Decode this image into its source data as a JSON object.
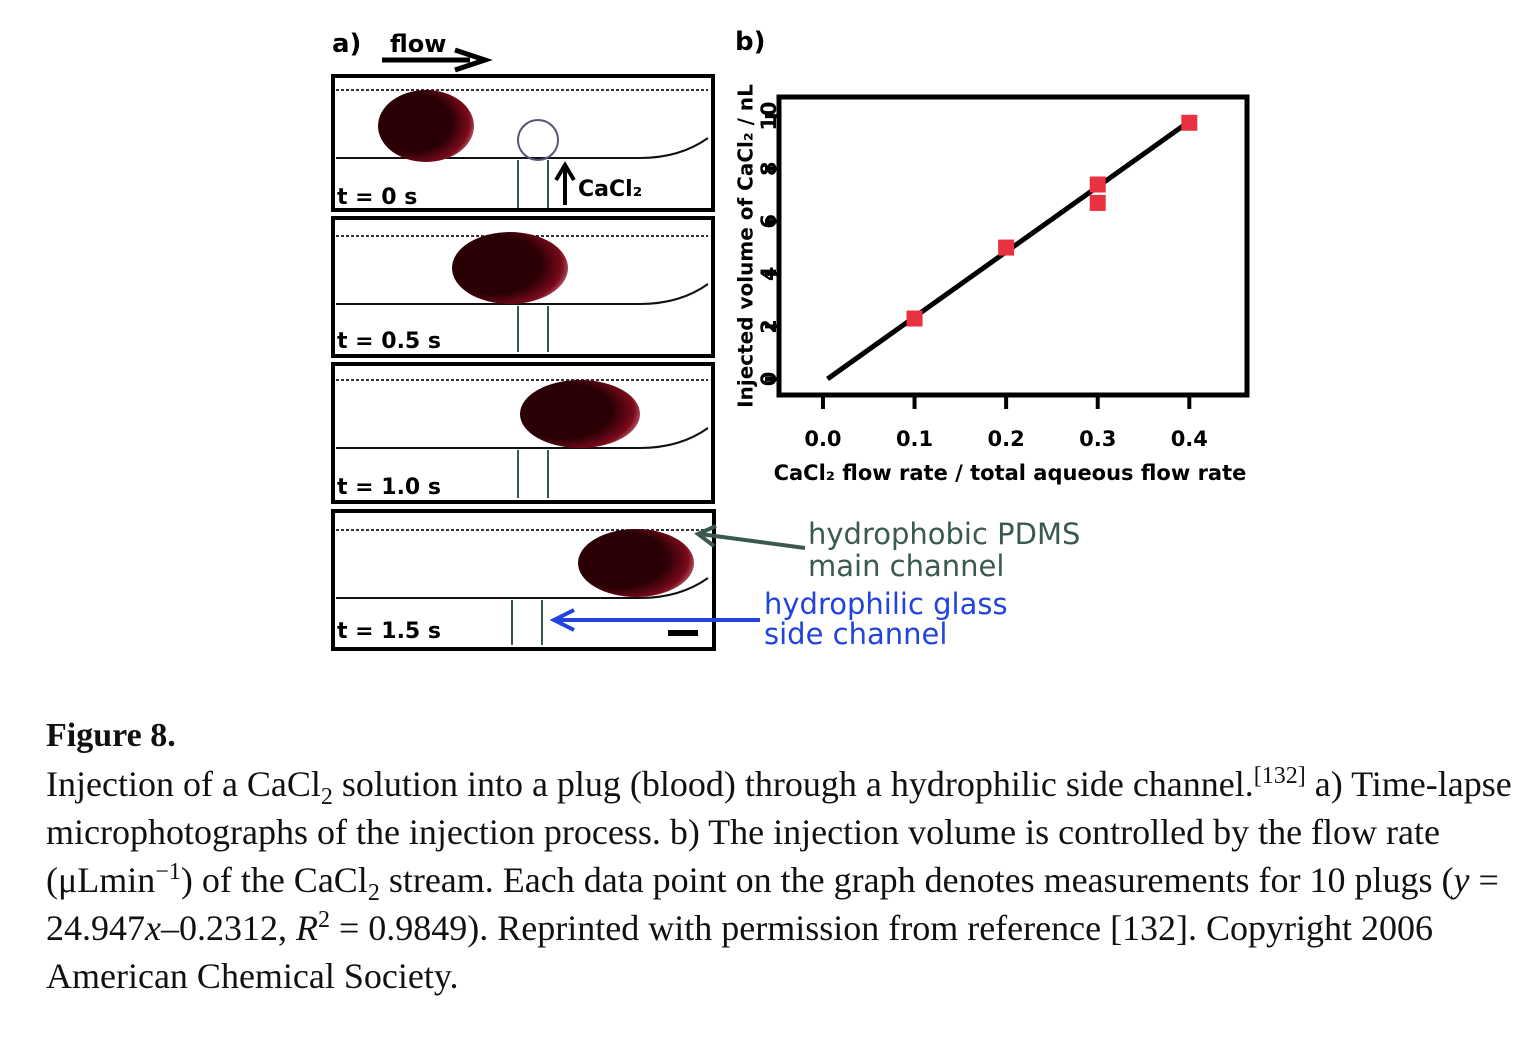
{
  "panel_a": {
    "label": "a)",
    "flow": "flow",
    "inlet": "CaCl₂",
    "frames": [
      "t = 0 s",
      "t = 0.5 s",
      "t = 1.0 s",
      "t = 1.5 s"
    ],
    "main_channel": [
      "hydrophobic PDMS",
      "main channel"
    ],
    "side_channel": [
      "hydrophilic glass",
      "side channel"
    ]
  },
  "chart_data": {
    "type": "scatter",
    "label": "b)",
    "x_label": "CaCl₂ flow rate / total aqueous flow rate",
    "y_label": "Injected volume of CaCl₂ / nL",
    "x": [
      0.1,
      0.2,
      0.3,
      0.3,
      0.4
    ],
    "values": [
      2.3,
      5.0,
      7.4,
      6.7,
      9.75
    ],
    "color": "#e8323f",
    "fit": {
      "x": [
        0.005,
        0.4
      ],
      "values": [
        0,
        9.8
      ],
      "color": "#000000"
    },
    "xlim": [
      -0.048,
      0.463
    ],
    "ylim": [
      -0.61,
      10.73
    ],
    "xticks": [
      {
        "value": 0,
        "label": "0.0"
      },
      0.1,
      0.2,
      0.3,
      0.4
    ],
    "yticks": [
      0,
      2,
      4,
      6,
      8,
      10
    ]
  },
  "caption": {
    "title": "Figure 8.",
    "runs": [
      "Injection of a CaCl",
      "2",
      " solution into a plug (blood) through a hydrophilic side channel.",
      "[132]",
      " a) Time-lapse microphotographs of the injection process. b) The injection volume is controlled by the flow rate (μLmin",
      "−1",
      ") of the CaCl",
      "2",
      " stream. Each data point on the graph denotes measurements for 10 plugs (",
      "y",
      " = 24.947",
      "x",
      "–0.2312, ",
      "R",
      "2",
      " = 0.9849). Reprinted with permission from reference [132]. Copyright 2006 American Chemical Society."
    ]
  }
}
